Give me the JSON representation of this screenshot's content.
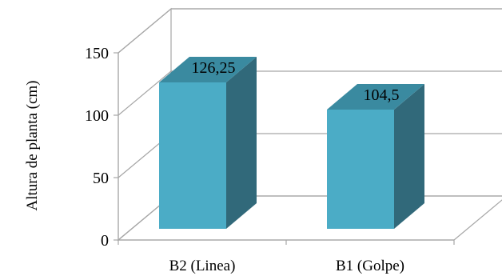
{
  "chart_data": {
    "type": "bar",
    "three_d": true,
    "categories": [
      "B2 (Linea)",
      "B1 (Golpe)"
    ],
    "values": [
      126.25,
      104.5
    ],
    "data_labels": [
      "126,25",
      "104,5"
    ],
    "title": "",
    "xlabel": "",
    "ylabel": "Altura de planta (cm)",
    "ylim": [
      0,
      150
    ],
    "yticks": [
      0,
      50,
      100,
      150
    ],
    "grid": true,
    "legend": "none",
    "colors": {
      "bar_front": "#4bacc6",
      "bar_side": "#31697a",
      "bar_top": "#3a8aa0",
      "grid": "#a6a6a6",
      "wall": "#ffffff"
    }
  }
}
